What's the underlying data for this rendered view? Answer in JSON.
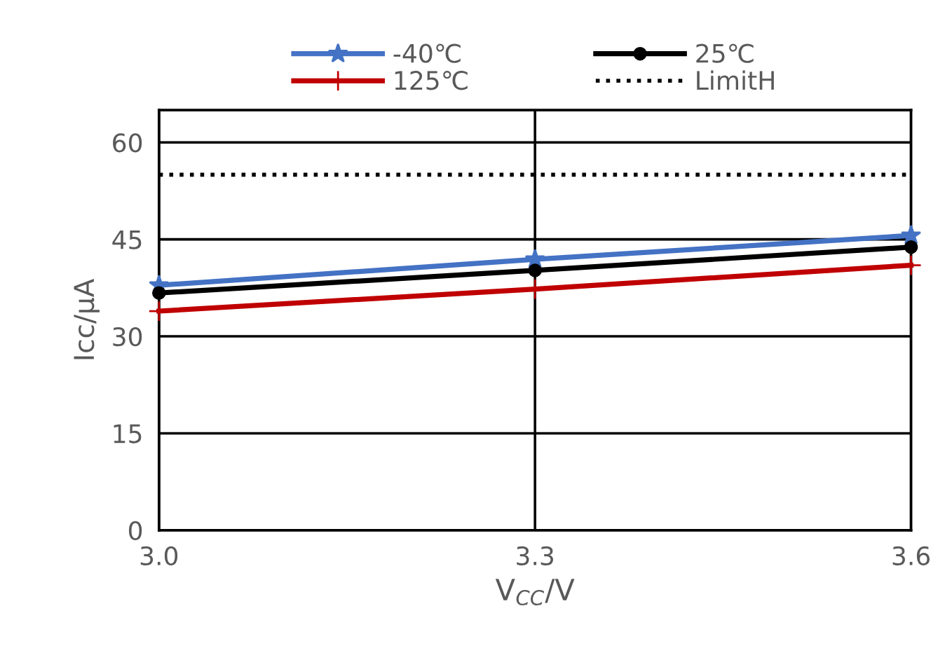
{
  "chart_data": {
    "type": "line",
    "xlabel": "V$_{CC}$/V",
    "ylabel": "Icc/μA",
    "x": [
      3.0,
      3.3,
      3.6
    ],
    "xlim": [
      3.0,
      3.6
    ],
    "xticks": [
      {
        "value": 3.0,
        "label": "3.0"
      },
      {
        "value": 3.3,
        "label": "3.3"
      },
      {
        "value": 3.6,
        "label": "3.6"
      }
    ],
    "ylim": [
      0,
      65
    ],
    "yticks": [
      0,
      15,
      30,
      45,
      60
    ],
    "grid": true,
    "legend": "top",
    "series": [
      {
        "name": "-40℃",
        "color": "#4472c4",
        "marker": "star",
        "values": [
          37.9,
          41.9,
          45.6
        ]
      },
      {
        "name": "25℃",
        "color": "#000000",
        "marker": "circle",
        "values": [
          36.7,
          40.2,
          43.8
        ]
      },
      {
        "name": "125℃",
        "color": "#c00000",
        "marker": "cross",
        "values": [
          33.9,
          37.3,
          41.0
        ]
      },
      {
        "name": "LimitH",
        "color": "#000000",
        "line_style": "dotted",
        "marker": "none",
        "values": [
          55,
          55,
          55
        ]
      }
    ]
  }
}
